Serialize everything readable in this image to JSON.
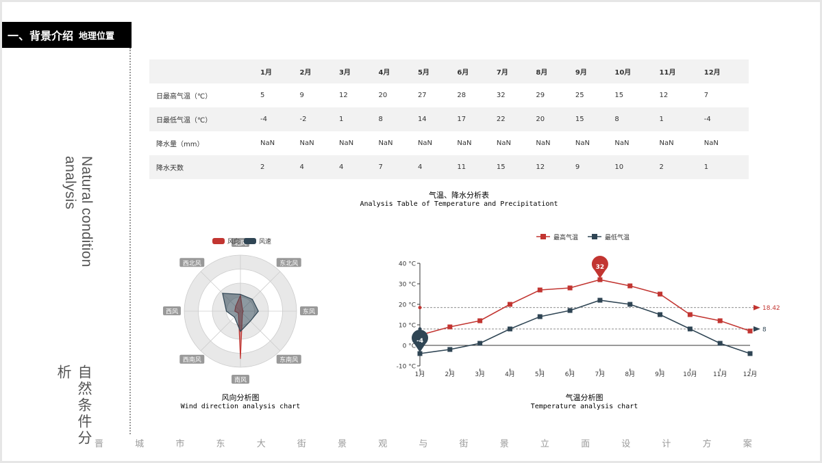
{
  "section": {
    "title": "一、背景介绍",
    "subtitle": "地理位置"
  },
  "side_title": {
    "en": "Natural condition analysis",
    "zh": "自然条件分析"
  },
  "table": {
    "months": [
      "1月",
      "2月",
      "3月",
      "4月",
      "5月",
      "6月",
      "7月",
      "8月",
      "9月",
      "10月",
      "11月",
      "12月"
    ],
    "rows": [
      {
        "label": "日最高气温（℃）",
        "values": [
          "5",
          "9",
          "12",
          "20",
          "27",
          "28",
          "32",
          "29",
          "25",
          "15",
          "12",
          "7"
        ]
      },
      {
        "label": "日最低气温（℃）",
        "values": [
          "-4",
          "-2",
          "1",
          "8",
          "14",
          "17",
          "22",
          "20",
          "15",
          "8",
          "1",
          "-4"
        ]
      },
      {
        "label": "降水量（mm）",
        "values": [
          "NaN",
          "NaN",
          "NaN",
          "NaN",
          "NaN",
          "NaN",
          "NaN",
          "NaN",
          "NaN",
          "NaN",
          "NaN",
          "NaN"
        ]
      },
      {
        "label": "降水天数",
        "values": [
          "2",
          "4",
          "4",
          "7",
          "4",
          "11",
          "15",
          "12",
          "9",
          "10",
          "2",
          "1"
        ]
      }
    ],
    "caption_zh": "气温、降水分析表",
    "caption_en": "Analysis Table of Temperature and Precipitationt"
  },
  "chart_data": [
    {
      "type": "radar",
      "legend": [
        "风向",
        "风速"
      ],
      "legend_position": "top",
      "indicators": [
        "北风",
        "东北风",
        "东风",
        "东南风",
        "南风",
        "西南风",
        "西风",
        "西北风"
      ],
      "series": [
        {
          "name": "风向",
          "values": [
            0.28,
            0.05,
            0.05,
            0.05,
            0.85,
            0.05,
            0.1,
            0.12
          ]
        },
        {
          "name": "风速",
          "values": [
            0.3,
            0.3,
            0.32,
            0.25,
            0.36,
            0.15,
            0.25,
            0.45
          ]
        }
      ],
      "colors": [
        "#c23531",
        "#2f4554"
      ],
      "caption_zh": "风向分析图",
      "caption_en": "Wind direction analysis chart"
    },
    {
      "type": "line",
      "categories": [
        "1月",
        "2月",
        "3月",
        "4月",
        "5月",
        "6月",
        "7月",
        "8月",
        "9月",
        "10月",
        "11月",
        "12月"
      ],
      "series": [
        {
          "name": "最高气温",
          "values": [
            5,
            9,
            12,
            20,
            27,
            28,
            32,
            29,
            25,
            15,
            12,
            7
          ],
          "color": "#c23531"
        },
        {
          "name": "最低气温",
          "values": [
            -4,
            -2,
            1,
            8,
            14,
            17,
            22,
            20,
            15,
            8,
            1,
            -4
          ],
          "color": "#2f4554"
        }
      ],
      "ylim": [
        -10,
        40
      ],
      "y_ticks": [
        "-10 °C",
        "0 °C",
        "10 °C",
        "20 °C",
        "30 °C",
        "40 °C"
      ],
      "markers": {
        "max_label": "32",
        "min_label": "-4"
      },
      "mark_lines": [
        {
          "label": "18.42",
          "value": 18.42,
          "series": "最高气温"
        },
        {
          "label": "8",
          "value": 8,
          "series": "最低气温"
        }
      ],
      "legend_position": "top",
      "caption_zh": "气温分析图",
      "caption_en": "Temperature analysis chart"
    }
  ],
  "footer_chars": [
    "晋",
    "城",
    "市",
    "东",
    "大",
    "街",
    "景",
    "观",
    "与",
    "街",
    "景",
    "立",
    "面",
    "设",
    "计",
    "方",
    "案"
  ]
}
